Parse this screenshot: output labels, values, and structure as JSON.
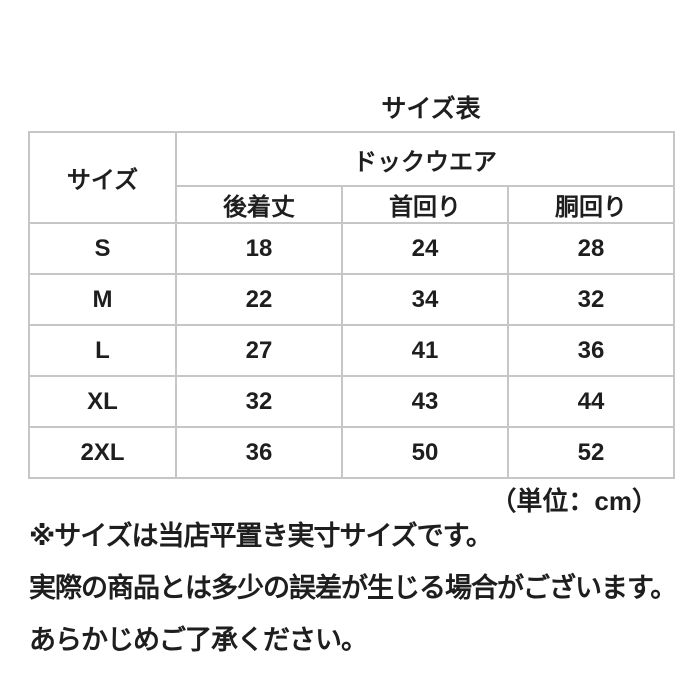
{
  "title": "サイズ表",
  "table": {
    "corner_header": "サイズ",
    "group_header": "ドックウエア",
    "columns": [
      "後着丈",
      "首回り",
      "胴回り"
    ],
    "rows": [
      {
        "size": "S",
        "values": [
          "18",
          "24",
          "28"
        ]
      },
      {
        "size": "M",
        "values": [
          "22",
          "34",
          "32"
        ]
      },
      {
        "size": "L",
        "values": [
          "27",
          "41",
          "36"
        ]
      },
      {
        "size": "XL",
        "values": [
          "32",
          "43",
          "44"
        ]
      },
      {
        "size": "2XL",
        "values": [
          "36",
          "50",
          "52"
        ]
      }
    ]
  },
  "unit_note": "（単位：cm）",
  "notes": [
    "※サイズは当店平置き実寸サイズです。",
    "実際の商品とは多少の誤差が生じる場合がございます。",
    "あらかじめご了承ください。"
  ],
  "colors": {
    "background": "#ffffff",
    "border": "#c6c6c6",
    "text": "#1e1e1e"
  },
  "chart_data": {
    "type": "table",
    "title": "サイズ表",
    "row_header": "サイズ",
    "group_header": "ドックウエア",
    "columns": [
      "後着丈",
      "首回り",
      "胴回り"
    ],
    "unit": "cm",
    "rows": [
      {
        "サイズ": "S",
        "後着丈": 18,
        "首回り": 24,
        "胴回り": 28
      },
      {
        "サイズ": "M",
        "後着丈": 22,
        "首回り": 34,
        "胴回り": 32
      },
      {
        "サイズ": "L",
        "後着丈": 27,
        "首回り": 41,
        "胴回り": 36
      },
      {
        "サイズ": "XL",
        "後着丈": 32,
        "首回り": 43,
        "胴回り": 44
      },
      {
        "サイズ": "2XL",
        "後着丈": 36,
        "首回り": 50,
        "胴回り": 52
      }
    ],
    "notes": [
      "※サイズは当店平置き実寸サイズです。",
      "実際の商品とは多少の誤差が生じる場合がございます。",
      "あらかじめご了承ください。"
    ]
  }
}
